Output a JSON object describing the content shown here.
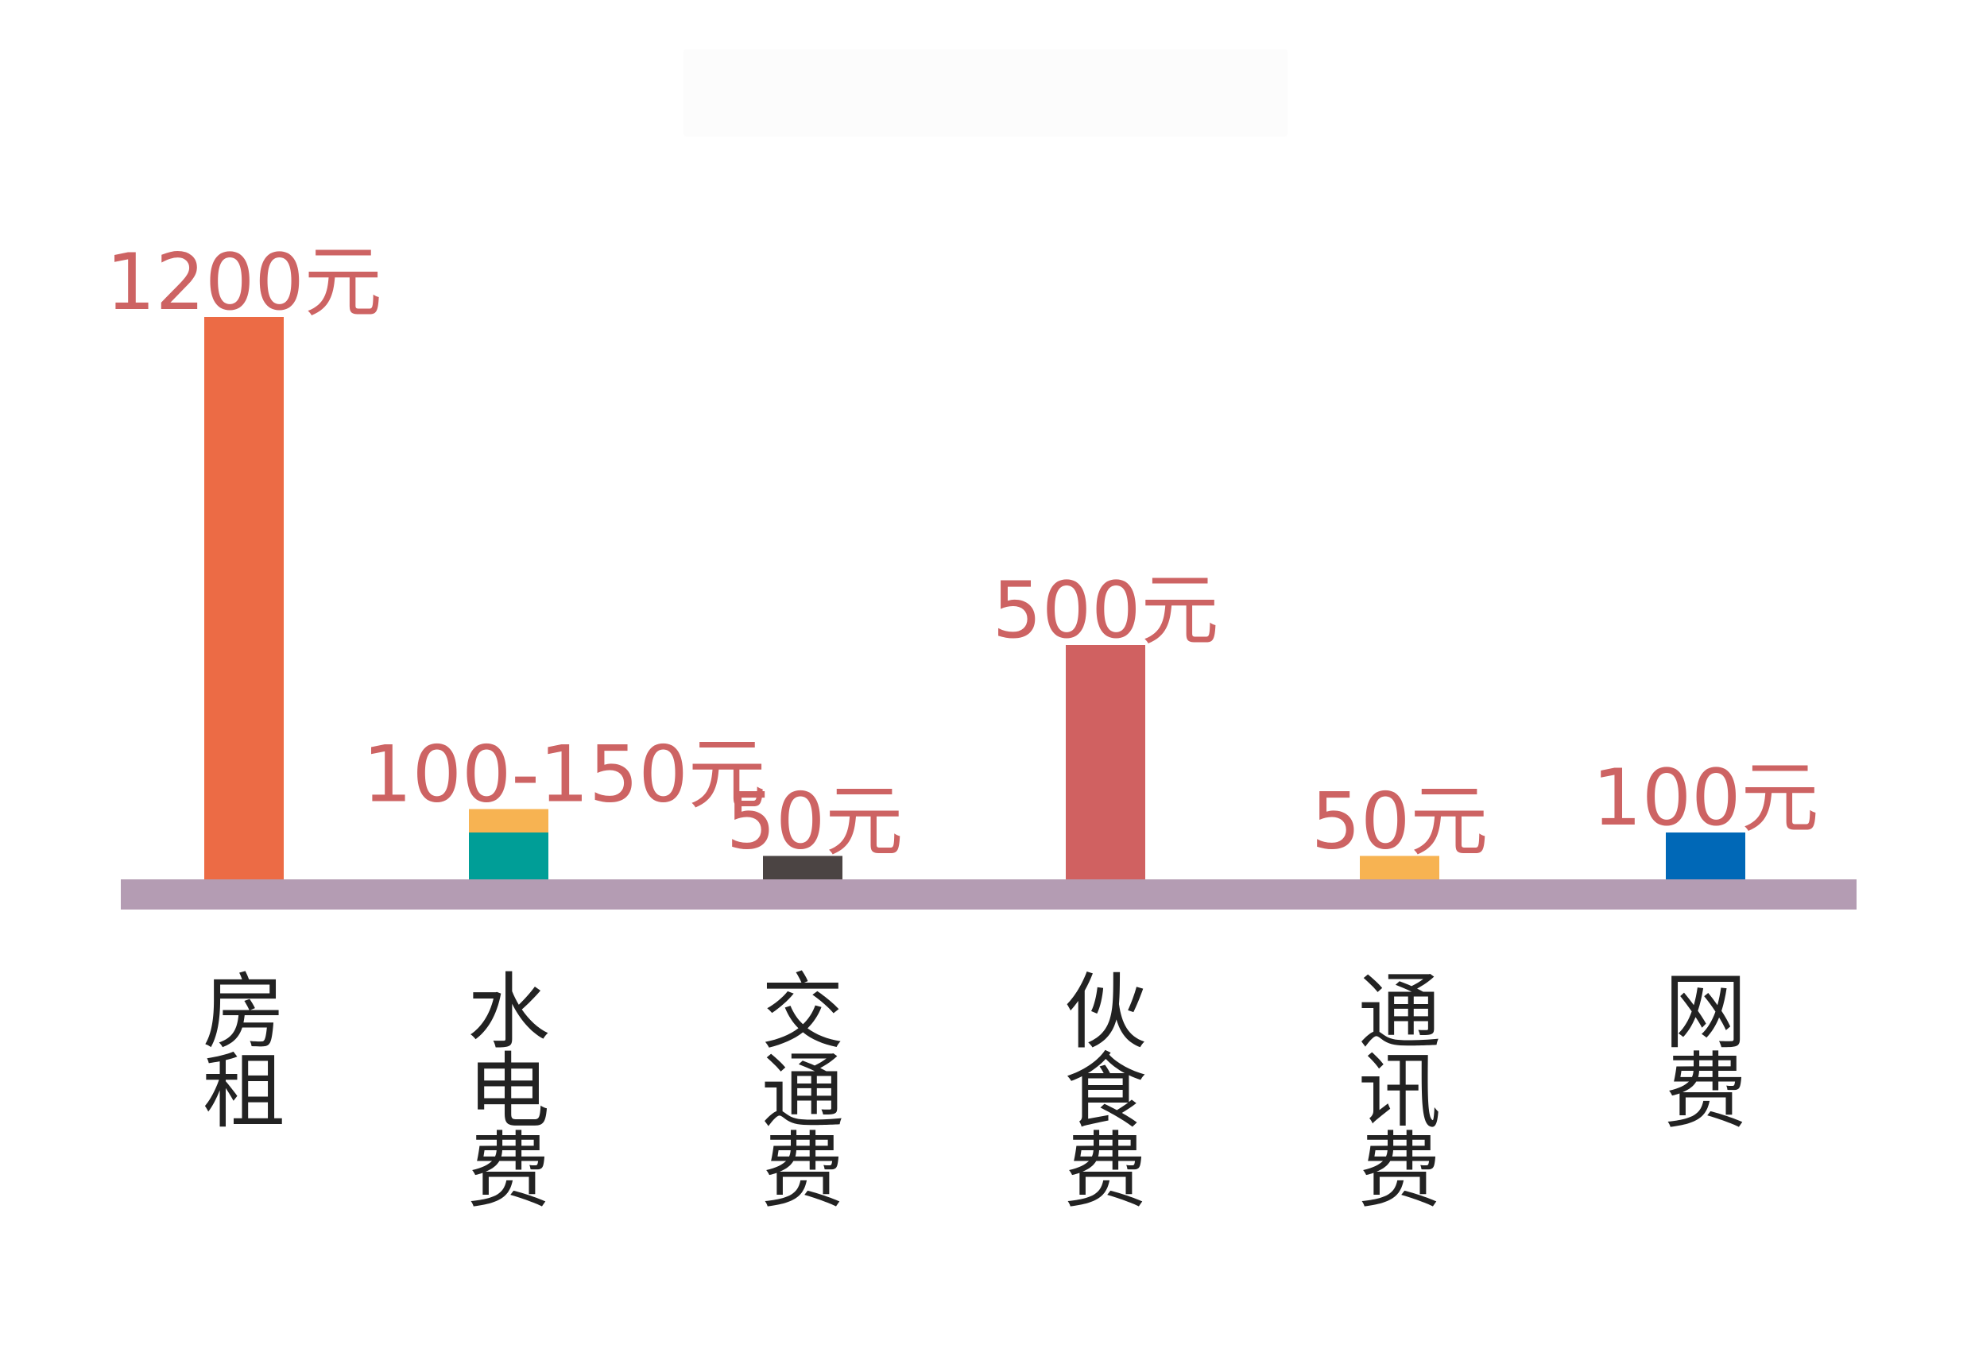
{
  "chart_data": {
    "type": "bar",
    "title": "",
    "xlabel": "",
    "ylabel": "",
    "ylim": [
      0,
      1200
    ],
    "grid": false,
    "legend": "none",
    "axis_color": "#b49cb3",
    "value_label_color": "#cd6363",
    "category_label_color": "#222222",
    "categories": [
      "房租",
      "水电费",
      "交通费",
      "伙食费",
      "通讯费",
      "网费"
    ],
    "bars": [
      {
        "category": "房租",
        "label": "1200元",
        "segments": [
          {
            "value": 1200,
            "color": "#ec6b45"
          }
        ]
      },
      {
        "category": "水电费",
        "label": "100-150元",
        "segments": [
          {
            "value": 100,
            "color": "#009e97"
          },
          {
            "value": 50,
            "color": "#f7b352"
          }
        ]
      },
      {
        "category": "交通费",
        "label": "50元",
        "segments": [
          {
            "value": 50,
            "color": "#4b4443"
          }
        ]
      },
      {
        "category": "伙食费",
        "label": "500元",
        "segments": [
          {
            "value": 500,
            "color": "#d06161"
          }
        ]
      },
      {
        "category": "通讯费",
        "label": "50元",
        "segments": [
          {
            "value": 50,
            "color": "#f7b352"
          }
        ]
      },
      {
        "category": "网费",
        "label": "100元",
        "segments": [
          {
            "value": 100,
            "color": "#0068b7"
          }
        ]
      }
    ]
  }
}
